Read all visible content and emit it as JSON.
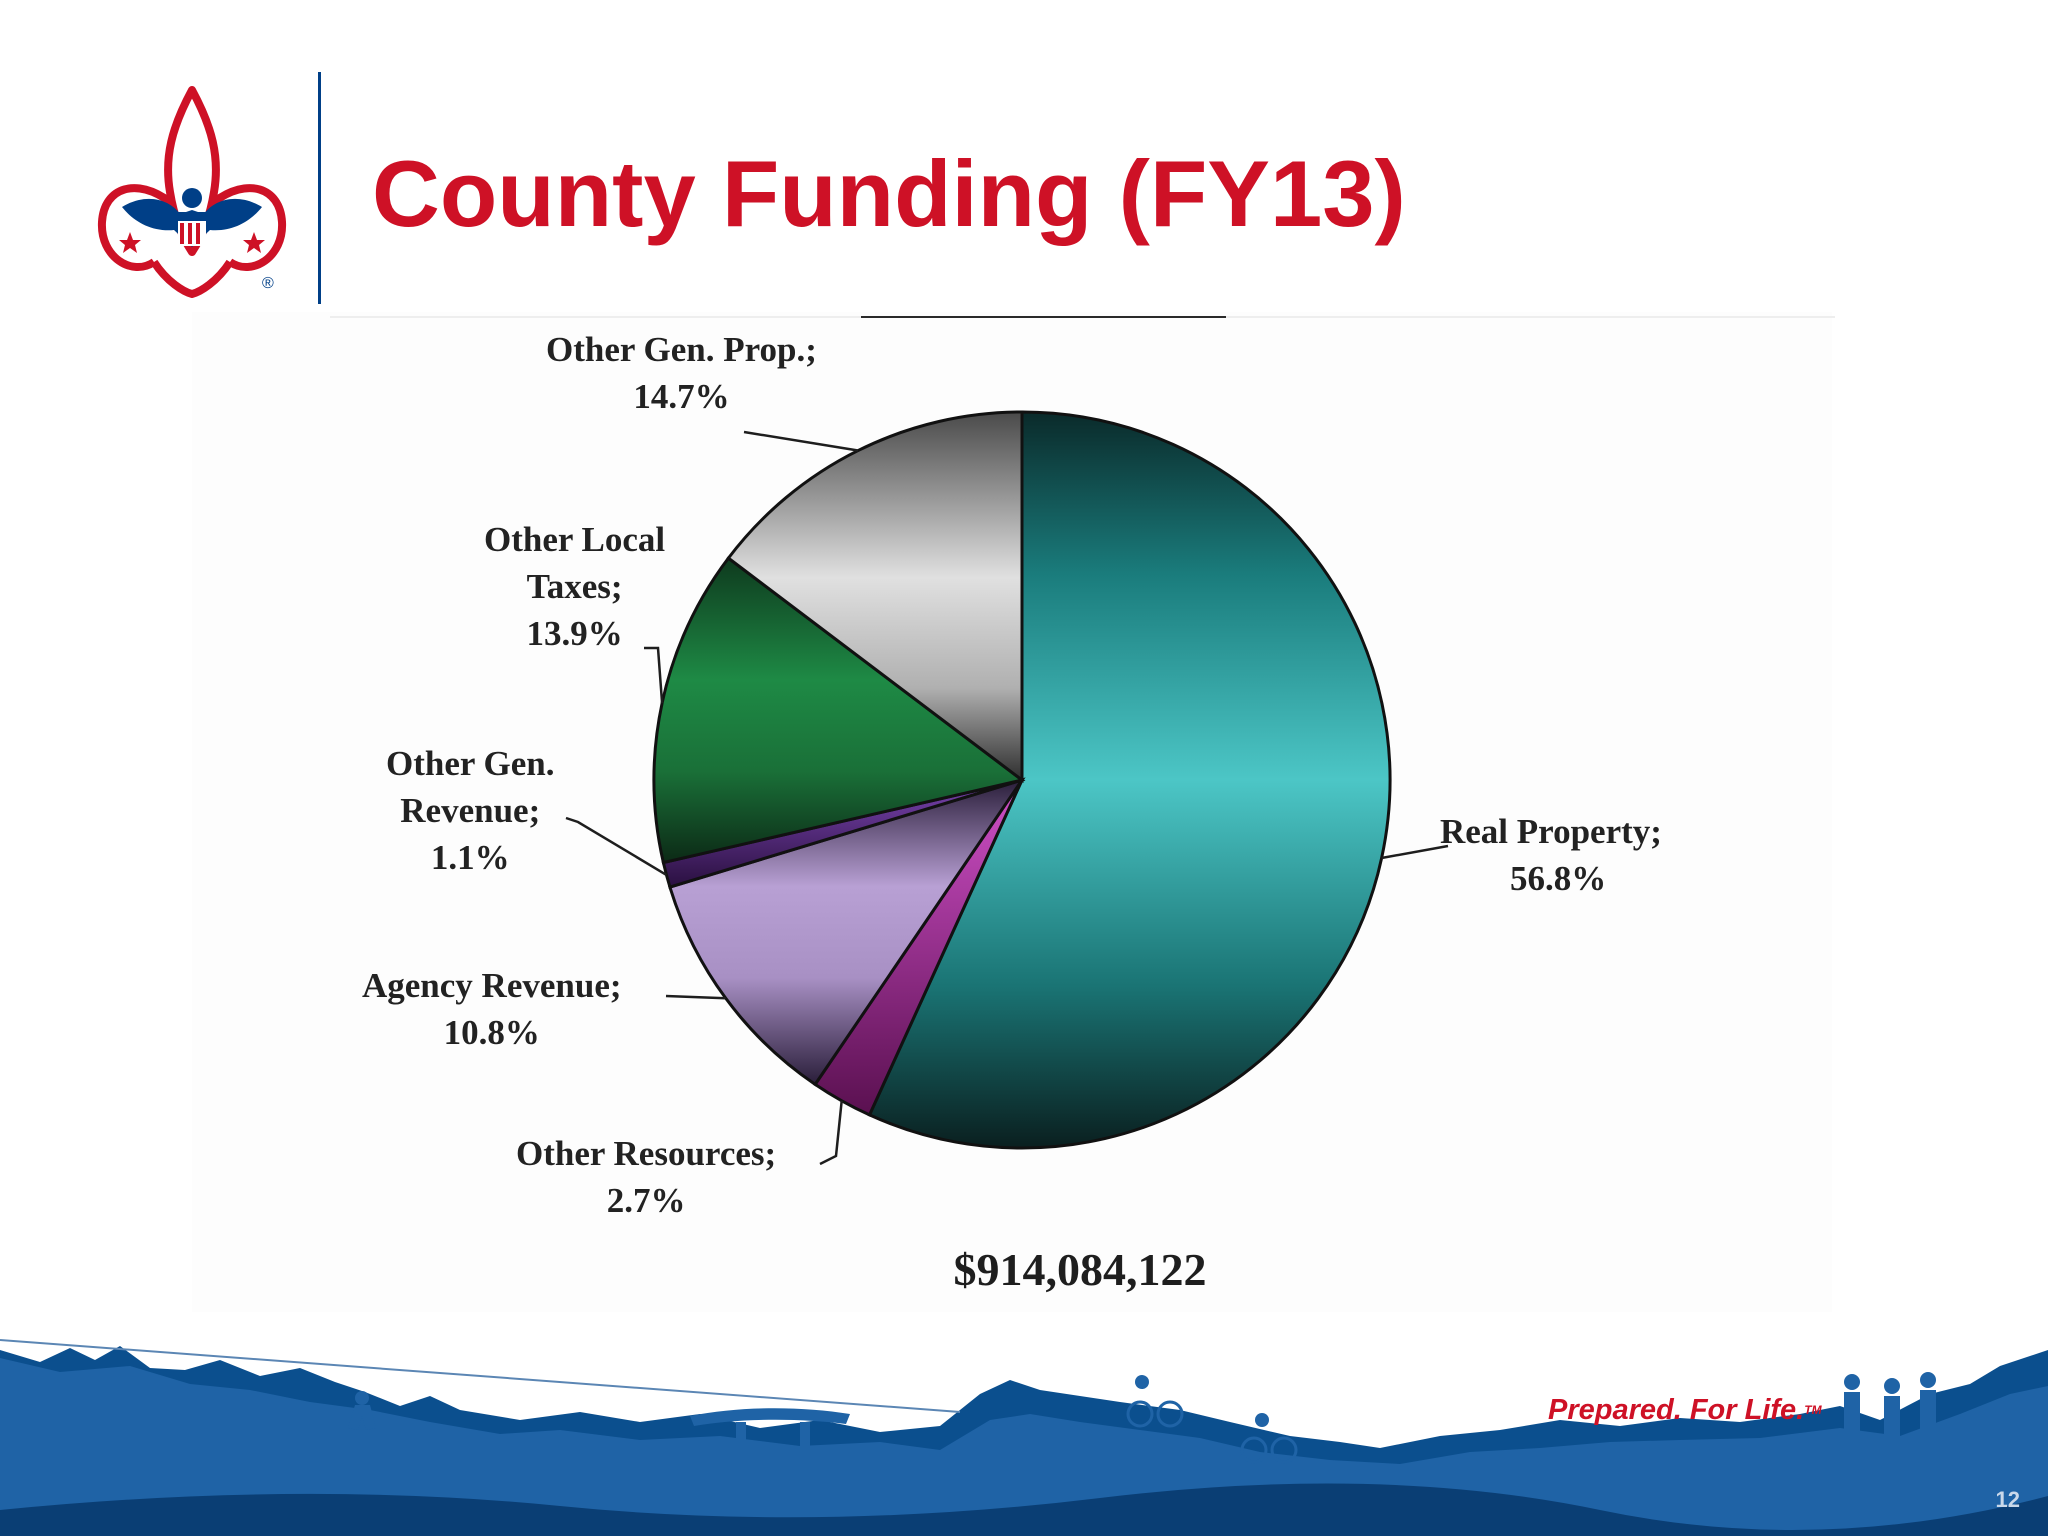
{
  "slide": {
    "title": "County Funding (FY13)",
    "tagline": "Prepared. For Life.",
    "tagline_mark": "TM",
    "page_number": "12",
    "total_label": "$914,084,122"
  },
  "colors": {
    "title": "#ce1126",
    "brand_blue": "#003f87",
    "tagline": "#ce1126"
  },
  "icons": {
    "logo": "fleur-de-lis-eagle-logo",
    "footer": "outdoor-activities-landscape"
  },
  "chart_data": {
    "type": "pie",
    "title": "",
    "start_angle_deg": 0,
    "direction": "clockwise",
    "total": "$914,084,122",
    "slices": [
      {
        "name": "Real Property",
        "value": 56.8,
        "label_line1": "Real Property;",
        "label_line2": "56.8%",
        "color": "#2bbdbd"
      },
      {
        "name": "Other Resources",
        "value": 2.7,
        "label_line1": "Other Resources;",
        "label_line2": "2.7%",
        "color": "#a0309a"
      },
      {
        "name": "Agency Revenue",
        "value": 10.8,
        "label_line1": "Agency Revenue;",
        "label_line2": "10.8%",
        "color": "#b09ad0"
      },
      {
        "name": "Other Gen. Revenue",
        "value": 1.1,
        "label_line1": "Other Gen.",
        "label_line2": "Revenue;",
        "label_line3": "1.1%",
        "color": "#5a2c8a"
      },
      {
        "name": "Other Local Taxes",
        "value": 13.9,
        "label_line1": "Other Local",
        "label_line2": "Taxes;",
        "label_line3": "13.9%",
        "color": "#1b7a3c"
      },
      {
        "name": "Other Gen. Prop.",
        "value": 14.7,
        "label_line1": "Other Gen. Prop.;",
        "label_line2": "14.7%",
        "color": "#c7c7c7"
      }
    ],
    "legend": "none",
    "label_style": "callout lines"
  }
}
